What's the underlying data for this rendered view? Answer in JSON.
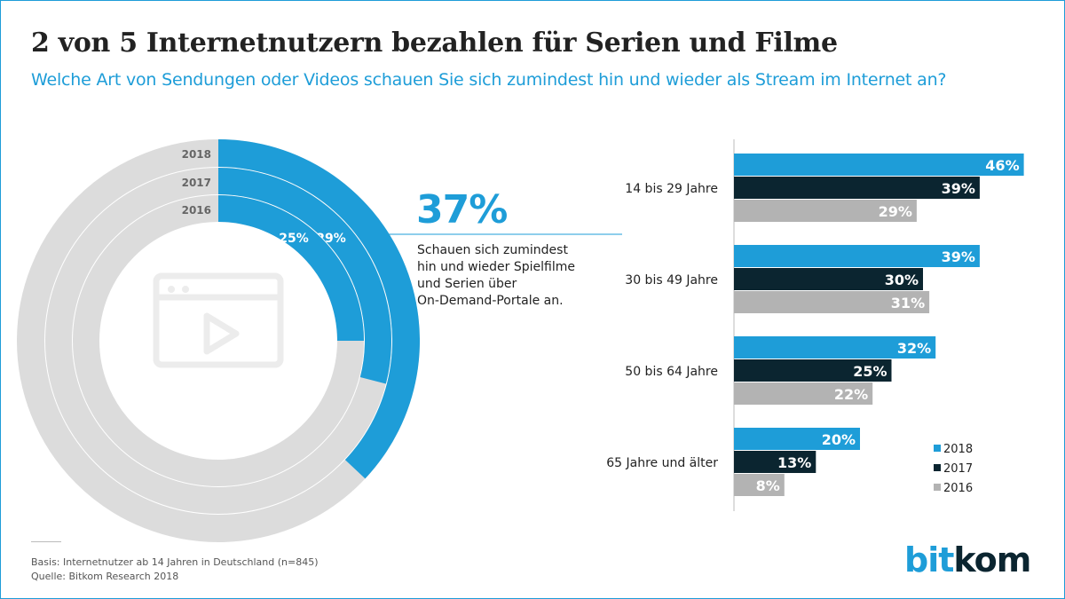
{
  "title": "2 von 5 Internetnutzern bezahlen für Serien und Filme",
  "subtitle": "Welche Art von Sendungen oder Videos schauen Sie sich zumindest hin und wieder als Stream im Internet an?",
  "highlight": {
    "value": "37%",
    "description_lines": [
      "Schauen sich zumindest",
      "hin und wieder Spielfilme",
      "und Serien über",
      "On-Demand-Portale an."
    ]
  },
  "footer": {
    "basis": "Basis: Internetnutzer ab 14 Jahren in Deutschland (n=845)",
    "source": "Quelle: Bitkom Research 2018"
  },
  "logo": {
    "part1": "bit",
    "part2": "kom"
  },
  "colors": {
    "2018": "#1e9dd8",
    "2017": "#0b2530",
    "2016": "#b3b3b3",
    "ring_bg": "#dcdcdc"
  },
  "center_icon": "video-player-icon",
  "chart_data": [
    {
      "type": "pie",
      "variant": "nested-donut",
      "rings": [
        {
          "name": "2018",
          "value": 37,
          "label": ""
        },
        {
          "name": "2017",
          "value": 29,
          "label": "29%"
        },
        {
          "name": "2016",
          "value": 25,
          "label": "25%"
        }
      ]
    },
    {
      "type": "bar",
      "orientation": "horizontal",
      "categories": [
        "14 bis 29 Jahre",
        "30  bis 49 Jahre",
        "50 bis 64 Jahre",
        "65 Jahre und älter"
      ],
      "series": [
        {
          "name": "2018",
          "values": [
            46,
            39,
            32,
            20
          ]
        },
        {
          "name": "2017",
          "values": [
            39,
            30,
            25,
            13
          ]
        },
        {
          "name": "2016",
          "values": [
            29,
            31,
            22,
            8
          ]
        }
      ],
      "unit": "%",
      "legend": "bottom-right"
    }
  ]
}
